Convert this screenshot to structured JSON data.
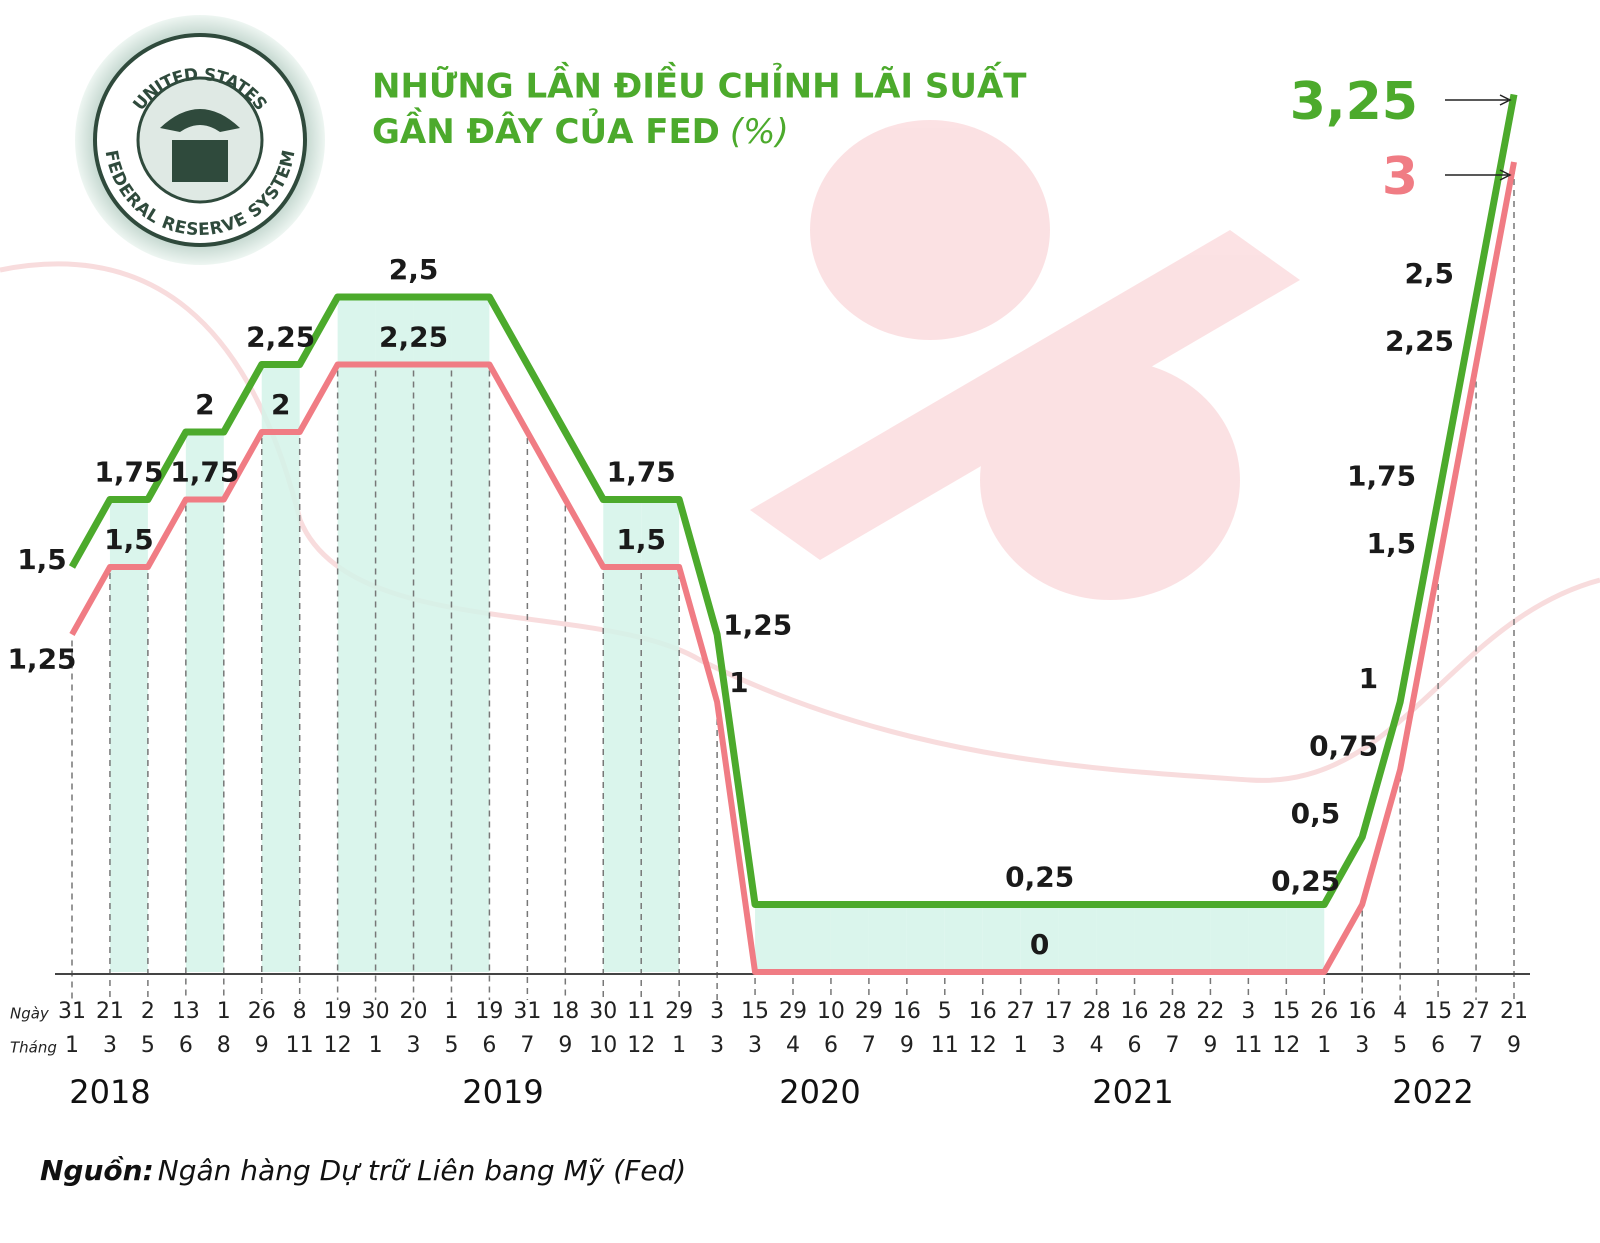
{
  "chart_data": {
    "type": "line",
    "title_lines": [
      "NHỮNG LẦN ĐIỀU CHỈNH LÃI SUẤT",
      "GẦN ĐÂY CỦA FED"
    ],
    "title_unit": "(%)",
    "seal_text": [
      "UNITED STATES",
      "FEDERAL RESERVE SYSTEM"
    ],
    "x_row_labels": [
      "Ngày",
      "Tháng"
    ],
    "categories": [
      {
        "day": "31",
        "month": "1"
      },
      {
        "day": "21",
        "month": "3"
      },
      {
        "day": "2",
        "month": "5"
      },
      {
        "day": "13",
        "month": "6"
      },
      {
        "day": "1",
        "month": "8"
      },
      {
        "day": "26",
        "month": "9"
      },
      {
        "day": "8",
        "month": "11"
      },
      {
        "day": "19",
        "month": "12"
      },
      {
        "day": "30",
        "month": "1"
      },
      {
        "day": "20",
        "month": "3"
      },
      {
        "day": "1",
        "month": "5"
      },
      {
        "day": "19",
        "month": "6"
      },
      {
        "day": "31",
        "month": "7"
      },
      {
        "day": "18",
        "month": "9"
      },
      {
        "day": "30",
        "month": "10"
      },
      {
        "day": "11",
        "month": "12"
      },
      {
        "day": "29",
        "month": "1"
      },
      {
        "day": "3",
        "month": "3"
      },
      {
        "day": "15",
        "month": "3"
      },
      {
        "day": "29",
        "month": "4"
      },
      {
        "day": "10",
        "month": "6"
      },
      {
        "day": "29",
        "month": "7"
      },
      {
        "day": "16",
        "month": "9"
      },
      {
        "day": "5",
        "month": "11"
      },
      {
        "day": "16",
        "month": "12"
      },
      {
        "day": "27",
        "month": "1"
      },
      {
        "day": "17",
        "month": "3"
      },
      {
        "day": "28",
        "month": "4"
      },
      {
        "day": "16",
        "month": "6"
      },
      {
        "day": "28",
        "month": "7"
      },
      {
        "day": "22",
        "month": "9"
      },
      {
        "day": "3",
        "month": "11"
      },
      {
        "day": "15",
        "month": "12"
      },
      {
        "day": "26",
        "month": "1"
      },
      {
        "day": "16",
        "month": "3"
      },
      {
        "day": "4",
        "month": "5"
      },
      {
        "day": "15",
        "month": "6"
      },
      {
        "day": "27",
        "month": "7"
      },
      {
        "day": "21",
        "month": "9"
      }
    ],
    "years": [
      "2018",
      "2019",
      "2020",
      "2021",
      "2022"
    ],
    "ylim": [
      0,
      3.5
    ],
    "series": [
      {
        "color": "#4caa2c",
        "values": [
          1.5,
          1.75,
          1.75,
          2,
          2,
          2.25,
          2.25,
          2.5,
          2.5,
          2.5,
          2.5,
          2.5,
          2.25,
          2,
          1.75,
          1.75,
          1.75,
          1.25,
          0.25,
          0.25,
          0.25,
          0.25,
          0.25,
          0.25,
          0.25,
          0.25,
          0.25,
          0.25,
          0.25,
          0.25,
          0.25,
          0.25,
          0.25,
          0.25,
          0.5,
          1,
          1.75,
          2.5,
          3.25
        ],
        "value_labels": [
          "1,5",
          "1,75",
          null,
          "2",
          null,
          "2,25",
          null,
          null,
          null,
          "2,5",
          null,
          null,
          null,
          null,
          null,
          "1,75",
          null,
          "1,25",
          null,
          null,
          null,
          null,
          null,
          null,
          null,
          "0,25",
          null,
          null,
          null,
          null,
          null,
          null,
          null,
          null,
          "0,5",
          "1",
          "1,75",
          "2,5",
          "3,25"
        ]
      },
      {
        "color": "#f07c84",
        "values": [
          1.25,
          1.5,
          1.5,
          1.75,
          1.75,
          2,
          2,
          2.25,
          2.25,
          2.25,
          2.25,
          2.25,
          2,
          1.75,
          1.5,
          1.5,
          1.5,
          1,
          0,
          0,
          0,
          0,
          0,
          0,
          0,
          0,
          0,
          0,
          0,
          0,
          0,
          0,
          0,
          0,
          0.25,
          0.75,
          1.5,
          2.25,
          3
        ],
        "value_labels": [
          "1,25",
          "1,5",
          null,
          "1,75",
          null,
          "2",
          null,
          null,
          null,
          "2,25",
          null,
          null,
          null,
          null,
          null,
          "1,5",
          null,
          "1",
          null,
          null,
          null,
          null,
          null,
          null,
          null,
          "0",
          null,
          null,
          null,
          null,
          null,
          null,
          null,
          null,
          "0,25",
          "0,75",
          "1,5",
          "2,25",
          "3"
        ]
      }
    ],
    "source_label": "Nguồn:",
    "source": "Ngân hàng Dự trữ Liên bang Mỹ (Fed)"
  }
}
